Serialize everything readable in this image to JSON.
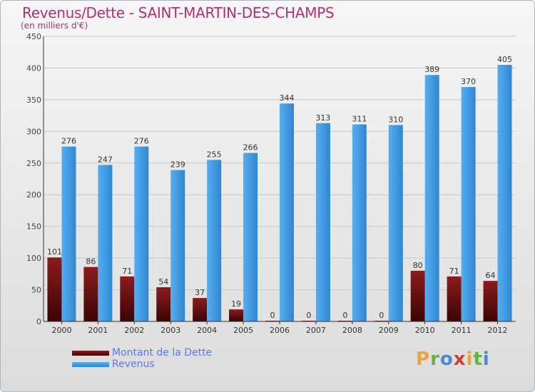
{
  "title": "Revenus/Dette - SAINT-MARTIN-DES-CHAMPS",
  "subtitle": "(en milliers d'€)",
  "legend": {
    "debt": "Montant de la Dette",
    "revenue": "Revenus"
  },
  "logo": {
    "text": "Proxiti",
    "colors": [
      "#e8a33a",
      "#62b246",
      "#4a8ad8",
      "#d83a3a",
      "#e8a33a",
      "#62b246",
      "#4a8ad8"
    ]
  },
  "colors": {
    "debt": "#7a1414",
    "revenue": "#3c93dc",
    "label": "#5a78e8",
    "title": "#b0306f"
  },
  "chart_data": {
    "type": "bar",
    "title": "Revenus/Dette - SAINT-MARTIN-DES-CHAMPS",
    "ylabel": "(en milliers d'€)",
    "ylim": [
      0,
      450
    ],
    "yticks": [
      0,
      50,
      100,
      150,
      200,
      250,
      300,
      350,
      400,
      450
    ],
    "grid": true,
    "categories": [
      "2000",
      "2001",
      "2002",
      "2003",
      "2004",
      "2005",
      "2006",
      "2007",
      "2008",
      "2009",
      "2010",
      "2011",
      "2012"
    ],
    "series": [
      {
        "name": "Montant de la Dette",
        "values": [
          101,
          86,
          71,
          54,
          37,
          19,
          0,
          0,
          0,
          0,
          80,
          71,
          64
        ]
      },
      {
        "name": "Revenus",
        "values": [
          276,
          247,
          276,
          239,
          255,
          266,
          344,
          313,
          311,
          310,
          389,
          370,
          405
        ]
      }
    ]
  }
}
